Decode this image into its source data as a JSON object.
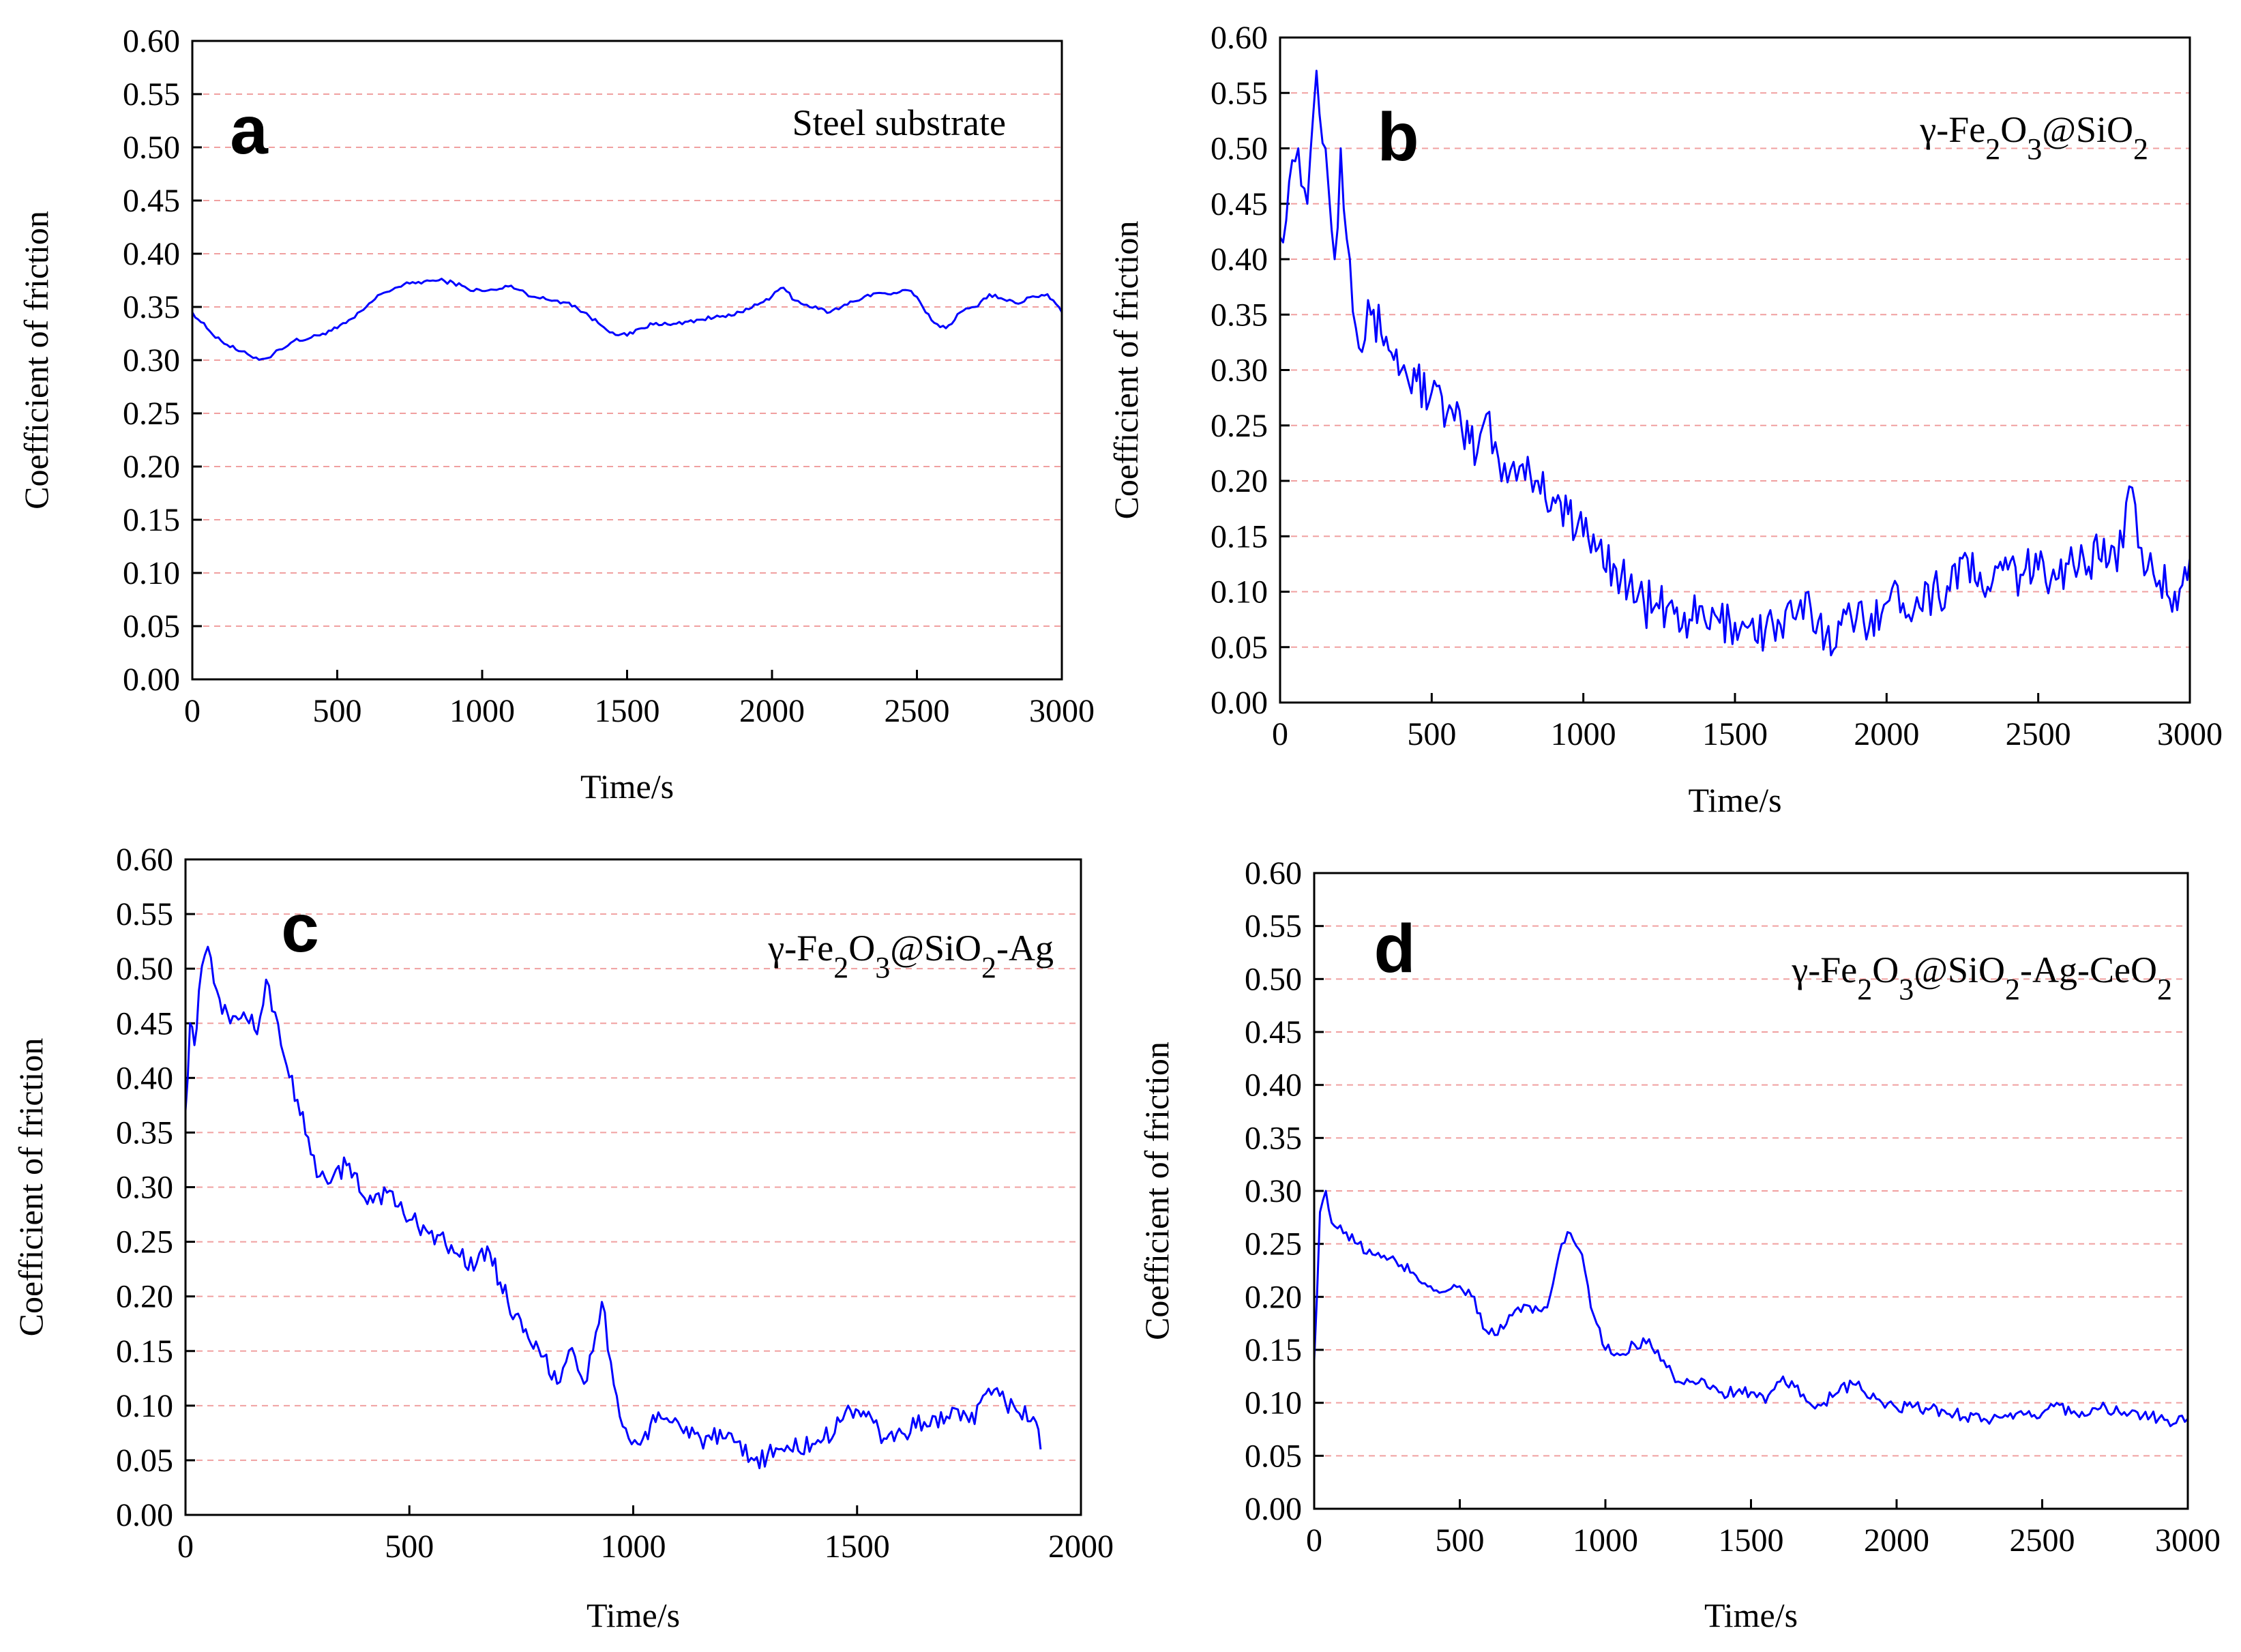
{
  "figure": {
    "background": "#ffffff",
    "line_color": "#0000ff",
    "grid_color": "#f0a0a0"
  },
  "chart_data": [
    {
      "type": "line",
      "panel_letter": "a",
      "legend": "Steel substrate",
      "legend_sub": [],
      "xlabel": "Time/s",
      "ylabel": "Coefficient of friction",
      "xlim": [
        0,
        3000
      ],
      "ylim": [
        0,
        0.6
      ],
      "xticks": [
        "0",
        "500",
        "1000",
        "1500",
        "2000",
        "2500",
        "3000"
      ],
      "yticks": [
        "0.00",
        "0.05",
        "0.10",
        "0.15",
        "0.20",
        "0.25",
        "0.30",
        "0.35",
        "0.40",
        "0.45",
        "0.50",
        "0.55",
        "0.60"
      ],
      "grid": "horizontal dashed",
      "noise": 0.002,
      "series": [
        {
          "name": "Steel substrate",
          "x": [
            0,
            50,
            100,
            150,
            200,
            240,
            260,
            300,
            350,
            400,
            450,
            500,
            560,
            600,
            650,
            700,
            750,
            800,
            850,
            900,
            950,
            1000,
            1050,
            1100,
            1150,
            1200,
            1250,
            1300,
            1350,
            1400,
            1450,
            1500,
            1550,
            1600,
            1650,
            1700,
            1750,
            1800,
            1850,
            1900,
            1950,
            2000,
            2040,
            2080,
            2120,
            2160,
            2200,
            2240,
            2280,
            2320,
            2360,
            2400,
            2440,
            2480,
            2520,
            2560,
            2600,
            2650,
            2700,
            2750,
            2800,
            2850,
            2900,
            2950,
            3000
          ],
          "y": [
            0.345,
            0.33,
            0.318,
            0.31,
            0.304,
            0.301,
            0.302,
            0.31,
            0.318,
            0.32,
            0.325,
            0.33,
            0.34,
            0.35,
            0.362,
            0.368,
            0.372,
            0.374,
            0.375,
            0.373,
            0.367,
            0.365,
            0.366,
            0.37,
            0.363,
            0.358,
            0.356,
            0.354,
            0.345,
            0.335,
            0.326,
            0.323,
            0.33,
            0.335,
            0.333,
            0.336,
            0.338,
            0.34,
            0.343,
            0.345,
            0.352,
            0.36,
            0.368,
            0.356,
            0.352,
            0.348,
            0.345,
            0.35,
            0.355,
            0.36,
            0.363,
            0.362,
            0.364,
            0.365,
            0.35,
            0.335,
            0.33,
            0.345,
            0.35,
            0.362,
            0.357,
            0.353,
            0.36,
            0.362,
            0.345
          ]
        }
      ]
    },
    {
      "type": "line",
      "panel_letter": "b",
      "legend": "γ-Fe",
      "legend_sub": [
        "2",
        "O",
        "3",
        "@SiO",
        "2"
      ],
      "xlabel": "Time/s",
      "ylabel": "Coefficient of friction",
      "xlim": [
        0,
        3000
      ],
      "ylim": [
        0,
        0.6
      ],
      "xticks": [
        "0",
        "500",
        "1000",
        "1500",
        "2000",
        "2500",
        "3000"
      ],
      "yticks": [
        "0.00",
        "0.05",
        "0.10",
        "0.15",
        "0.20",
        "0.25",
        "0.30",
        "0.35",
        "0.40",
        "0.45",
        "0.50",
        "0.55",
        "0.60"
      ],
      "grid": "horizontal dashed",
      "noise": 0.022,
      "series": [
        {
          "name": "γ-Fe2O3@SiO2",
          "x": [
            0,
            30,
            60,
            90,
            120,
            150,
            180,
            200,
            230,
            260,
            300,
            350,
            400,
            450,
            500,
            550,
            600,
            650,
            680,
            720,
            760,
            800,
            850,
            900,
            950,
            1000,
            1050,
            1100,
            1150,
            1200,
            1250,
            1300,
            1350,
            1400,
            1450,
            1500,
            1550,
            1600,
            1650,
            1700,
            1750,
            1800,
            1850,
            1900,
            1950,
            2000,
            2100,
            2200,
            2250,
            2300,
            2350,
            2400,
            2450,
            2500,
            2550,
            2600,
            2650,
            2700,
            2750,
            2780,
            2800,
            2830,
            2860,
            2900,
            2950,
            3000
          ],
          "y": [
            0.42,
            0.47,
            0.5,
            0.45,
            0.57,
            0.5,
            0.4,
            0.5,
            0.4,
            0.32,
            0.35,
            0.33,
            0.3,
            0.29,
            0.28,
            0.26,
            0.245,
            0.225,
            0.26,
            0.22,
            0.21,
            0.215,
            0.2,
            0.185,
            0.17,
            0.15,
            0.14,
            0.125,
            0.105,
            0.09,
            0.085,
            0.08,
            0.075,
            0.075,
            0.072,
            0.072,
            0.07,
            0.065,
            0.07,
            0.075,
            0.085,
            0.06,
            0.07,
            0.075,
            0.08,
            0.09,
            0.095,
            0.105,
            0.13,
            0.105,
            0.11,
            0.12,
            0.115,
            0.12,
            0.12,
            0.125,
            0.13,
            0.13,
            0.14,
            0.14,
            0.195,
            0.14,
            0.12,
            0.11,
            0.1,
            0.13
          ]
        }
      ]
    },
    {
      "type": "line",
      "panel_letter": "c",
      "legend": "γ-Fe",
      "legend_sub": [
        "2",
        "O",
        "3",
        "@SiO",
        "2",
        "-Ag"
      ],
      "xlabel": "Time/s",
      "ylabel": "Coefficient of friction",
      "xlim": [
        0,
        2000
      ],
      "ylim": [
        0,
        0.6
      ],
      "xticks": [
        "0",
        "500",
        "1000",
        "1500",
        "2000"
      ],
      "yticks": [
        "0.00",
        "0.05",
        "0.10",
        "0.15",
        "0.20",
        "0.25",
        "0.30",
        "0.35",
        "0.40",
        "0.45",
        "0.50",
        "0.55",
        "0.60"
      ],
      "grid": "horizontal dashed",
      "noise": 0.01,
      "series": [
        {
          "name": "γ-Fe2O3@SiO2-Ag",
          "x": [
            0,
            10,
            20,
            30,
            50,
            70,
            100,
            130,
            160,
            180,
            200,
            220,
            250,
            280,
            300,
            330,
            360,
            400,
            450,
            500,
            550,
            600,
            650,
            680,
            720,
            760,
            800,
            830,
            850,
            870,
            890,
            910,
            930,
            950,
            970,
            990,
            1010,
            1050,
            1100,
            1150,
            1200,
            1270,
            1300,
            1350,
            1400,
            1450,
            1480,
            1520,
            1560,
            1600,
            1650,
            1700,
            1750,
            1800,
            1850,
            1900,
            1910
          ],
          "y": [
            0.37,
            0.45,
            0.43,
            0.48,
            0.52,
            0.48,
            0.45,
            0.46,
            0.44,
            0.49,
            0.46,
            0.42,
            0.38,
            0.33,
            0.31,
            0.31,
            0.32,
            0.29,
            0.295,
            0.27,
            0.26,
            0.24,
            0.23,
            0.24,
            0.195,
            0.17,
            0.145,
            0.12,
            0.14,
            0.145,
            0.12,
            0.15,
            0.195,
            0.14,
            0.09,
            0.07,
            0.065,
            0.085,
            0.085,
            0.07,
            0.07,
            0.05,
            0.055,
            0.06,
            0.065,
            0.075,
            0.1,
            0.09,
            0.07,
            0.075,
            0.085,
            0.09,
            0.085,
            0.11,
            0.1,
            0.085,
            0.06
          ]
        }
      ]
    },
    {
      "type": "line",
      "panel_letter": "d",
      "legend": "γ-Fe",
      "legend_sub": [
        "2",
        "O",
        "3",
        "@SiO",
        "2",
        "-Ag-CeO",
        "2"
      ],
      "xlabel": "Time/s",
      "ylabel": "Coefficient of friction",
      "xlim": [
        0,
        3000
      ],
      "ylim": [
        0,
        0.6
      ],
      "xticks": [
        "0",
        "500",
        "1000",
        "1500",
        "2000",
        "2500",
        "3000"
      ],
      "yticks": [
        "0.00",
        "0.05",
        "0.10",
        "0.15",
        "0.20",
        "0.25",
        "0.30",
        "0.35",
        "0.40",
        "0.45",
        "0.50",
        "0.55",
        "0.60"
      ],
      "grid": "horizontal dashed",
      "noise": 0.006,
      "series": [
        {
          "name": "γ-Fe2O3@SiO2-Ag-CeO2",
          "x": [
            0,
            20,
            40,
            60,
            100,
            150,
            200,
            250,
            300,
            350,
            400,
            450,
            500,
            550,
            580,
            600,
            650,
            700,
            750,
            800,
            850,
            880,
            920,
            950,
            1000,
            1050,
            1100,
            1150,
            1200,
            1250,
            1300,
            1350,
            1400,
            1450,
            1500,
            1550,
            1600,
            1650,
            1700,
            1750,
            1800,
            1870,
            1900,
            1950,
            2000,
            2100,
            2200,
            2300,
            2400,
            2500,
            2550,
            2600,
            2700,
            2800,
            2900,
            2950,
            3000
          ],
          "y": [
            0.14,
            0.28,
            0.3,
            0.27,
            0.26,
            0.25,
            0.24,
            0.235,
            0.23,
            0.22,
            0.21,
            0.205,
            0.21,
            0.2,
            0.17,
            0.165,
            0.17,
            0.19,
            0.185,
            0.19,
            0.25,
            0.26,
            0.24,
            0.19,
            0.15,
            0.145,
            0.155,
            0.16,
            0.14,
            0.12,
            0.12,
            0.115,
            0.11,
            0.11,
            0.11,
            0.1,
            0.12,
            0.115,
            0.1,
            0.1,
            0.11,
            0.12,
            0.105,
            0.1,
            0.095,
            0.095,
            0.09,
            0.085,
            0.085,
            0.09,
            0.1,
            0.09,
            0.095,
            0.09,
            0.085,
            0.08,
            0.085
          ]
        }
      ]
    }
  ]
}
